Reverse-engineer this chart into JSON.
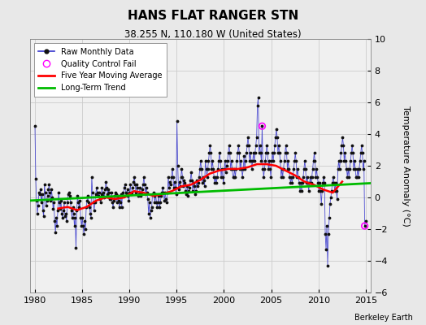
{
  "title": "HANS FLAT RANGER STN",
  "subtitle": "38.255 N, 110.180 W (United States)",
  "ylabel": "Temperature Anomaly (°C)",
  "credit": "Berkeley Earth",
  "xlim": [
    1979.5,
    2015.5
  ],
  "ylim": [
    -6,
    10
  ],
  "yticks": [
    -6,
    -4,
    -2,
    0,
    2,
    4,
    6,
    8,
    10
  ],
  "xticks": [
    1980,
    1985,
    1990,
    1995,
    2000,
    2005,
    2010,
    2015
  ],
  "bg_color": "#e8e8e8",
  "plot_bg_color": "#f0f0f0",
  "grid_color": "#cccccc",
  "raw_color": "#3333cc",
  "dot_color": "#111111",
  "moving_avg_color": "#ff0000",
  "trend_color": "#00bb00",
  "qc_fail_color": "#ff00ff",
  "raw_monthly": [
    1980.042,
    4.5,
    1980.125,
    1.2,
    1980.208,
    -0.2,
    1980.292,
    -1.0,
    1980.375,
    -0.5,
    1980.458,
    0.3,
    1980.542,
    0.2,
    1980.625,
    0.5,
    1980.708,
    -0.3,
    1980.792,
    0.2,
    1980.875,
    -0.8,
    1980.958,
    -1.2,
    1981.042,
    0.8,
    1981.125,
    0.3,
    1981.208,
    -0.5,
    1981.292,
    -0.2,
    1981.375,
    0.1,
    1981.458,
    0.5,
    1981.542,
    0.8,
    1981.625,
    0.3,
    1981.708,
    -0.2,
    1981.792,
    0.5,
    1981.875,
    0.0,
    1981.958,
    -0.7,
    1982.042,
    -0.3,
    1982.125,
    -1.5,
    1982.208,
    -2.2,
    1982.292,
    -1.3,
    1982.375,
    -1.8,
    1982.458,
    -0.8,
    1982.542,
    0.3,
    1982.625,
    -0.3,
    1982.708,
    -0.7,
    1982.792,
    -0.2,
    1982.875,
    -1.0,
    1982.958,
    -1.3,
    1983.042,
    -0.8,
    1983.125,
    -0.3,
    1983.208,
    -1.2,
    1983.292,
    -1.0,
    1983.375,
    -1.5,
    1983.458,
    -0.3,
    1983.542,
    0.2,
    1983.625,
    0.3,
    1983.708,
    0.1,
    1983.792,
    -0.3,
    1983.875,
    -0.8,
    1983.958,
    -1.3,
    1984.042,
    -0.6,
    1984.125,
    -1.0,
    1984.208,
    -1.8,
    1984.292,
    -1.3,
    1984.375,
    -3.2,
    1984.458,
    -0.8,
    1984.542,
    0.1,
    1984.625,
    -0.3,
    1984.708,
    -0.6,
    1984.792,
    -0.2,
    1984.875,
    -1.3,
    1984.958,
    -1.8,
    1985.042,
    -1.3,
    1985.125,
    -1.8,
    1985.208,
    -2.3,
    1985.292,
    -1.5,
    1985.375,
    -2.0,
    1985.458,
    -0.6,
    1985.542,
    -0.2,
    1985.625,
    0.1,
    1985.708,
    -0.3,
    1985.792,
    -0.6,
    1985.875,
    -1.0,
    1985.958,
    -1.3,
    1986.042,
    1.3,
    1986.125,
    0.3,
    1986.208,
    -0.3,
    1986.292,
    -0.8,
    1986.375,
    -0.3,
    1986.458,
    0.2,
    1986.542,
    0.6,
    1986.625,
    0.3,
    1986.708,
    0.1,
    1986.792,
    0.3,
    1986.875,
    -0.1,
    1986.958,
    -0.3,
    1987.042,
    0.2,
    1987.125,
    0.6,
    1987.208,
    0.1,
    1987.292,
    0.3,
    1987.375,
    0.0,
    1987.458,
    0.5,
    1987.542,
    1.0,
    1987.625,
    0.6,
    1987.708,
    0.2,
    1987.792,
    0.5,
    1987.875,
    0.3,
    1987.958,
    -0.1,
    1988.042,
    -0.1,
    1988.125,
    0.3,
    1988.208,
    -0.3,
    1988.292,
    -0.6,
    1988.375,
    -0.2,
    1988.458,
    0.1,
    1988.542,
    0.3,
    1988.625,
    0.2,
    1988.708,
    -0.3,
    1988.792,
    0.1,
    1988.875,
    -0.2,
    1988.958,
    -0.6,
    1989.042,
    -0.3,
    1989.125,
    0.2,
    1989.208,
    -0.6,
    1989.292,
    0.3,
    1989.375,
    0.1,
    1989.458,
    0.6,
    1989.542,
    0.8,
    1989.625,
    0.3,
    1989.708,
    0.2,
    1989.792,
    0.5,
    1989.875,
    0.1,
    1989.958,
    -0.2,
    1990.042,
    0.3,
    1990.125,
    0.8,
    1990.208,
    0.2,
    1990.292,
    0.3,
    1990.375,
    0.6,
    1990.458,
    1.0,
    1990.542,
    1.3,
    1990.625,
    0.8,
    1990.708,
    0.3,
    1990.792,
    0.8,
    1990.875,
    0.6,
    1990.958,
    0.1,
    1991.042,
    0.2,
    1991.125,
    0.6,
    1991.208,
    0.1,
    1991.292,
    0.3,
    1991.375,
    0.5,
    1991.458,
    0.8,
    1991.542,
    1.3,
    1991.625,
    0.8,
    1991.708,
    0.2,
    1991.792,
    0.6,
    1991.875,
    0.3,
    1991.958,
    -0.1,
    1992.042,
    -1.0,
    1992.125,
    -0.3,
    1992.208,
    -1.3,
    1992.292,
    -0.8,
    1992.375,
    -0.6,
    1992.458,
    0.2,
    1992.542,
    0.3,
    1992.625,
    0.1,
    1992.708,
    -0.3,
    1992.792,
    0.2,
    1992.875,
    -0.3,
    1992.958,
    -0.6,
    1993.042,
    -0.3,
    1993.125,
    0.1,
    1993.208,
    -0.6,
    1993.292,
    -0.3,
    1993.375,
    0.1,
    1993.458,
    0.3,
    1993.542,
    0.6,
    1993.625,
    0.3,
    1993.708,
    -0.2,
    1993.792,
    0.3,
    1993.875,
    -0.1,
    1993.958,
    -0.3,
    1994.042,
    0.3,
    1994.125,
    1.3,
    1994.208,
    0.6,
    1994.292,
    1.0,
    1994.375,
    0.8,
    1994.458,
    1.3,
    1994.542,
    1.8,
    1994.625,
    1.3,
    1994.708,
    0.6,
    1994.792,
    1.0,
    1994.875,
    0.6,
    1994.958,
    0.2,
    1995.042,
    4.8,
    1995.125,
    2.0,
    1995.208,
    0.5,
    1995.292,
    1.0,
    1995.375,
    0.7,
    1995.458,
    1.3,
    1995.542,
    1.8,
    1995.625,
    1.3,
    1995.708,
    0.7,
    1995.792,
    1.1,
    1995.875,
    0.9,
    1995.958,
    0.4,
    1996.042,
    0.2,
    1996.125,
    0.7,
    1996.208,
    0.1,
    1996.292,
    0.4,
    1996.375,
    0.6,
    1996.458,
    1.1,
    1996.542,
    1.6,
    1996.625,
    1.1,
    1996.708,
    0.4,
    1996.792,
    0.9,
    1996.875,
    0.7,
    1996.958,
    0.2,
    1997.042,
    0.4,
    1997.125,
    1.1,
    1997.208,
    0.7,
    1997.292,
    0.9,
    1997.375,
    1.3,
    1997.458,
    1.8,
    1997.542,
    2.3,
    1997.625,
    1.8,
    1997.708,
    0.9,
    1997.792,
    1.3,
    1997.875,
    1.1,
    1997.958,
    0.7,
    1998.042,
    2.3,
    1998.125,
    1.8,
    1998.208,
    1.3,
    1998.292,
    1.8,
    1998.375,
    2.3,
    1998.458,
    2.8,
    1998.542,
    3.3,
    1998.625,
    2.8,
    1998.708,
    1.8,
    1998.792,
    2.3,
    1998.875,
    1.8,
    1998.958,
    1.3,
    1999.042,
    0.9,
    1999.125,
    1.3,
    1999.208,
    0.9,
    1999.292,
    1.3,
    1999.375,
    1.8,
    1999.458,
    2.3,
    1999.542,
    2.8,
    1999.625,
    2.3,
    1999.708,
    1.3,
    1999.792,
    1.8,
    1999.875,
    1.3,
    1999.958,
    0.9,
    2000.042,
    1.8,
    2000.125,
    2.3,
    2000.208,
    1.6,
    2000.292,
    2.0,
    2000.375,
    2.3,
    2000.458,
    2.8,
    2000.542,
    3.3,
    2000.625,
    2.8,
    2000.708,
    1.8,
    2000.792,
    2.3,
    2000.875,
    1.8,
    2000.958,
    1.3,
    2001.042,
    1.3,
    2001.125,
    1.8,
    2001.208,
    1.3,
    2001.292,
    1.8,
    2001.375,
    2.3,
    2001.458,
    2.8,
    2001.542,
    3.3,
    2001.625,
    2.8,
    2001.708,
    1.8,
    2001.792,
    2.3,
    2001.875,
    1.8,
    2001.958,
    1.3,
    2002.042,
    1.8,
    2002.125,
    2.6,
    2002.208,
    1.8,
    2002.292,
    2.3,
    2002.375,
    2.8,
    2002.458,
    3.3,
    2002.542,
    3.8,
    2002.625,
    3.3,
    2002.708,
    2.3,
    2002.792,
    2.8,
    2002.875,
    2.3,
    2002.958,
    1.8,
    2003.042,
    2.3,
    2003.125,
    2.8,
    2003.208,
    2.3,
    2003.292,
    2.8,
    2003.375,
    3.3,
    2003.458,
    3.8,
    2003.542,
    5.8,
    2003.625,
    6.3,
    2003.708,
    2.8,
    2003.792,
    3.3,
    2003.875,
    2.8,
    2003.958,
    2.3,
    2004.042,
    4.5,
    2004.125,
    1.8,
    2004.208,
    1.3,
    2004.292,
    1.8,
    2004.375,
    2.3,
    2004.458,
    2.8,
    2004.542,
    3.3,
    2004.625,
    2.8,
    2004.708,
    1.8,
    2004.792,
    2.3,
    2004.875,
    1.8,
    2004.958,
    1.3,
    2005.042,
    2.3,
    2005.125,
    2.8,
    2005.208,
    2.3,
    2005.292,
    2.8,
    2005.375,
    3.3,
    2005.458,
    3.8,
    2005.542,
    4.3,
    2005.625,
    3.8,
    2005.708,
    2.8,
    2005.792,
    3.3,
    2005.875,
    2.8,
    2005.958,
    2.3,
    2006.042,
    1.3,
    2006.125,
    1.8,
    2006.208,
    1.3,
    2006.292,
    1.8,
    2006.375,
    2.3,
    2006.458,
    2.8,
    2006.542,
    3.3,
    2006.625,
    2.8,
    2006.708,
    1.8,
    2006.792,
    2.3,
    2006.875,
    1.8,
    2006.958,
    1.3,
    2007.042,
    0.9,
    2007.125,
    1.3,
    2007.208,
    0.9,
    2007.292,
    1.3,
    2007.375,
    1.8,
    2007.458,
    2.3,
    2007.542,
    2.8,
    2007.625,
    2.3,
    2007.708,
    1.3,
    2007.792,
    1.8,
    2007.875,
    1.3,
    2007.958,
    0.9,
    2008.042,
    0.4,
    2008.125,
    0.9,
    2008.208,
    0.4,
    2008.292,
    0.9,
    2008.375,
    1.3,
    2008.458,
    1.8,
    2008.542,
    2.3,
    2008.625,
    1.8,
    2008.708,
    0.9,
    2008.792,
    1.3,
    2008.875,
    0.9,
    2008.958,
    0.4,
    2009.042,
    0.9,
    2009.125,
    1.3,
    2009.208,
    0.9,
    2009.292,
    1.3,
    2009.375,
    1.8,
    2009.458,
    2.3,
    2009.542,
    2.8,
    2009.625,
    2.3,
    2009.708,
    1.3,
    2009.792,
    1.8,
    2009.875,
    1.3,
    2009.958,
    0.9,
    2010.042,
    0.4,
    2010.125,
    0.9,
    2010.208,
    0.4,
    2010.292,
    -0.4,
    2010.375,
    0.4,
    2010.458,
    0.9,
    2010.542,
    1.3,
    2010.625,
    0.9,
    2010.708,
    -2.3,
    2010.792,
    -3.3,
    2010.875,
    -1.8,
    2010.958,
    -4.3,
    2011.042,
    -2.3,
    2011.125,
    -1.3,
    2011.208,
    -0.4,
    2011.292,
    0.0,
    2011.375,
    0.4,
    2011.458,
    0.9,
    2011.542,
    1.3,
    2011.625,
    0.9,
    2011.708,
    0.4,
    2011.792,
    0.9,
    2011.875,
    0.4,
    2011.958,
    -0.1,
    2012.042,
    1.8,
    2012.125,
    2.3,
    2012.208,
    1.8,
    2012.292,
    2.3,
    2012.375,
    2.8,
    2012.458,
    3.3,
    2012.542,
    3.8,
    2012.625,
    3.3,
    2012.708,
    2.3,
    2012.792,
    2.8,
    2012.875,
    2.3,
    2012.958,
    1.8,
    2013.042,
    1.3,
    2013.125,
    1.8,
    2013.208,
    1.3,
    2013.292,
    1.8,
    2013.375,
    2.3,
    2013.458,
    2.8,
    2013.542,
    3.3,
    2013.625,
    2.8,
    2013.708,
    1.8,
    2013.792,
    2.3,
    2013.875,
    1.8,
    2013.958,
    1.3,
    2014.042,
    1.3,
    2014.125,
    1.8,
    2014.208,
    1.3,
    2014.292,
    1.8,
    2014.375,
    2.3,
    2014.458,
    2.8,
    2014.542,
    3.3,
    2014.625,
    2.8,
    2014.708,
    1.8,
    2014.792,
    2.3,
    2014.875,
    -1.8,
    2014.958,
    -1.5
  ],
  "qc_fail_points": [
    [
      2004.042,
      4.5
    ],
    [
      2014.875,
      -1.8
    ]
  ],
  "moving_avg_x": [
    1982.5,
    1983.5,
    1984.5,
    1985.5,
    1986.5,
    1987.5,
    1988.5,
    1989.5,
    1990.5,
    1991.5,
    1992.5,
    1993.5,
    1994.5,
    1995.5,
    1996.5,
    1997.5,
    1998.5,
    1999.5,
    2000.5,
    2001.5,
    2002.5,
    2003.5,
    2004.5,
    2005.5,
    2006.5,
    2007.5,
    2008.5,
    2009.5,
    2010.5,
    2011.5,
    2012.5
  ],
  "moving_avg_y": [
    -0.7,
    -0.6,
    -0.8,
    -0.6,
    -0.2,
    0.0,
    -0.1,
    0.0,
    0.4,
    0.3,
    0.1,
    0.2,
    0.4,
    0.7,
    0.8,
    1.1,
    1.5,
    1.7,
    1.8,
    1.8,
    1.9,
    2.1,
    2.1,
    2.0,
    1.7,
    1.4,
    1.0,
    0.8,
    0.5,
    0.3,
    1.0
  ],
  "trend_x": [
    1979.5,
    2015.5
  ],
  "trend_y": [
    -0.2,
    0.9
  ]
}
